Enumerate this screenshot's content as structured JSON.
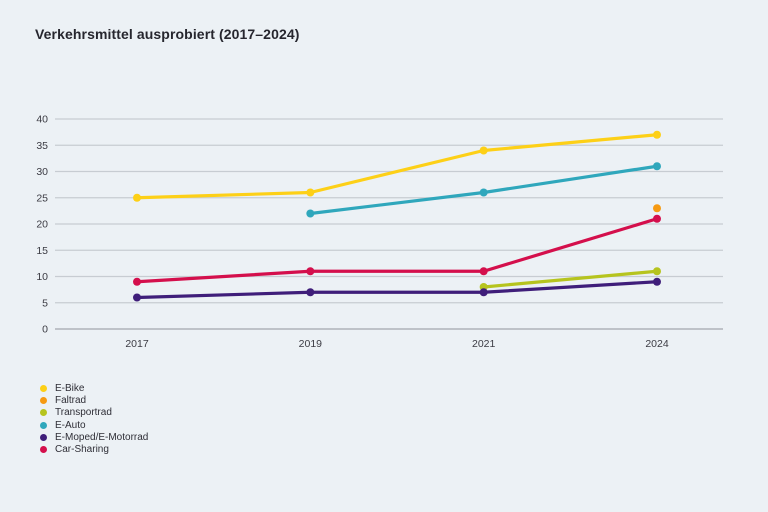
{
  "page": {
    "background": "#ecf1f5"
  },
  "chart_data": {
    "type": "line",
    "title": "Verkehrsmittel ausprobiert (2017–2024)",
    "categories": [
      "2017",
      "2019",
      "2021",
      "2024"
    ],
    "series": [
      {
        "name": "E-Bike",
        "color": "#fdd017",
        "values": [
          25,
          26,
          34,
          37
        ]
      },
      {
        "name": "Faltrad",
        "color": "#f69a12",
        "values": [
          null,
          null,
          null,
          23
        ]
      },
      {
        "name": "Transportrad",
        "color": "#b6c41e",
        "values": [
          null,
          null,
          8,
          11
        ]
      },
      {
        "name": "E-Auto",
        "color": "#2fa7bc",
        "values": [
          null,
          22,
          26,
          31
        ]
      },
      {
        "name": "E-Moped/E-Motorrad",
        "color": "#3f1e7a",
        "values": [
          6,
          7,
          7,
          9
        ]
      },
      {
        "name": "Car-Sharing",
        "color": "#d40f4c",
        "values": [
          9,
          11,
          11,
          21
        ]
      }
    ],
    "xlabel": "",
    "ylabel": "",
    "ylim": [
      0,
      40
    ],
    "ytick_step": 5,
    "grid": true,
    "grid_color": "#c7ccd2",
    "axis_line_color": "#a2a7ad",
    "legend_position": "bottom-left"
  }
}
